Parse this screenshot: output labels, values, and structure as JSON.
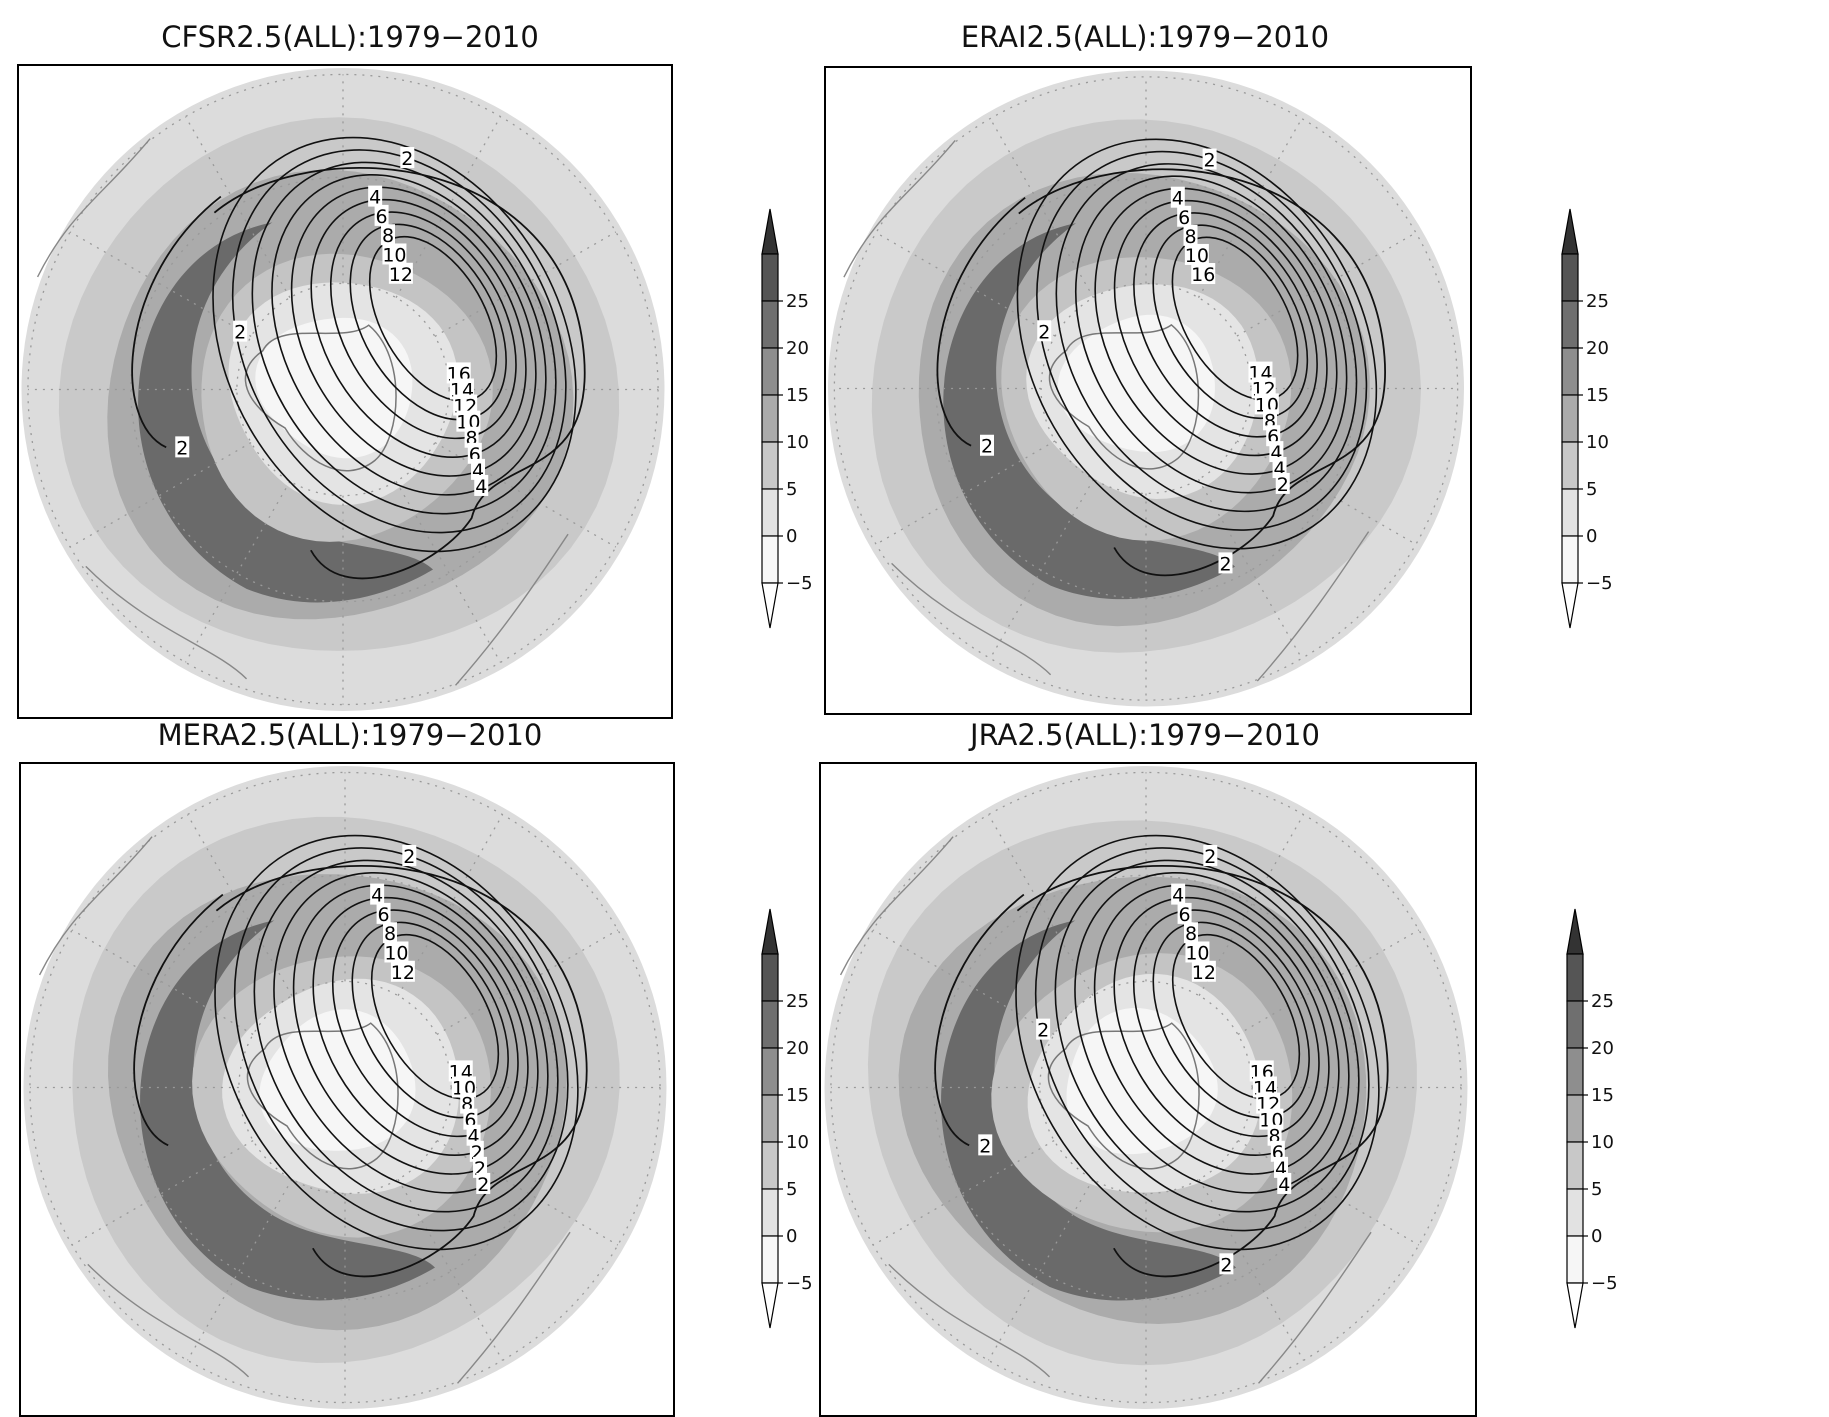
{
  "panels": [
    {
      "title": "CFSR2.5(ALL):1979−2010"
    },
    {
      "title": "ERAI2.5(ALL):1979−2010"
    },
    {
      "title": "MERA2.5(ALL):1979−2010"
    },
    {
      "title": "JRA2.5(ALL):1979−2010"
    }
  ],
  "colorbar": {
    "ticks": [
      "25",
      "20",
      "15",
      "10",
      "5",
      "0",
      "−5"
    ],
    "colors": [
      "#555555",
      "#6f6f6f",
      "#8e8e8e",
      "#ababab",
      "#c8c8c8",
      "#e2e2e2",
      "#f6f6f6"
    ]
  },
  "contour_labels": {
    "cfsr": [
      "2",
      "4",
      "6",
      "8",
      "10",
      "12",
      "16",
      "14",
      "12",
      "10",
      "8",
      "6",
      "4",
      "4",
      "2",
      "2"
    ],
    "erai": [
      "2",
      "4",
      "6",
      "8",
      "10",
      "16",
      "14",
      "12",
      "10",
      "8",
      "6",
      "4",
      "4",
      "2",
      "2",
      "2",
      "2"
    ],
    "mera": [
      "2",
      "4",
      "6",
      "8",
      "10",
      "12",
      "14",
      "10",
      "8",
      "6",
      "4",
      "2",
      "2",
      "2"
    ],
    "jra": [
      "2",
      "4",
      "6",
      "8",
      "10",
      "12",
      "16",
      "14",
      "12",
      "10",
      "8",
      "6",
      "4",
      "4",
      "2",
      "2",
      "2"
    ]
  }
}
